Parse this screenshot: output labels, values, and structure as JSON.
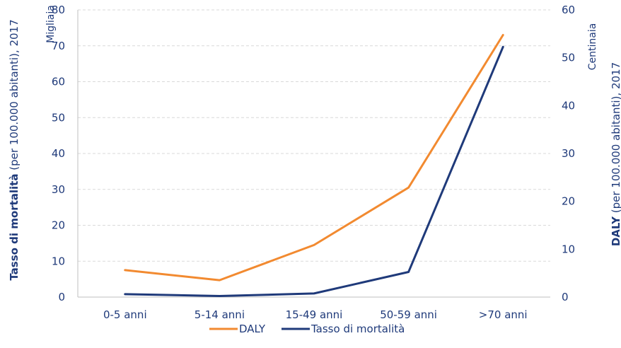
{
  "chart_data": {
    "type": "line",
    "categories": [
      "0-5 anni",
      "5-14 anni",
      "15-49 anni",
      "50-59 anni",
      ">70 anni"
    ],
    "y_left": {
      "title_bold": "Tasso di mortalità",
      "title_rest": " (per 100.000 abitanti), 2017",
      "unit": "Migliaia",
      "ylim": [
        0,
        80
      ],
      "ticks": [
        "0",
        "10",
        "20",
        "30",
        "40",
        "50",
        "60",
        "70",
        "80"
      ]
    },
    "y_right": {
      "title_bold": "DALY",
      "title_rest": " (per 100.000 abitanti), 2017",
      "unit": "Centinaia",
      "ylim": [
        0,
        60
      ],
      "ticks": [
        "0",
        "10",
        "20",
        "30",
        "40",
        "50",
        "60"
      ]
    },
    "grid": true,
    "legend_position": "bottom",
    "series": [
      {
        "name": "DALY",
        "axis": "left",
        "color": "#f28a30",
        "values": [
          7.5,
          4.7,
          14.5,
          30.5,
          73.0
        ]
      },
      {
        "name": "Tasso di mortalità",
        "axis": "left",
        "color": "#1f3a7a",
        "values": [
          0.8,
          0.3,
          1.0,
          7.0,
          69.7
        ]
      }
    ]
  }
}
